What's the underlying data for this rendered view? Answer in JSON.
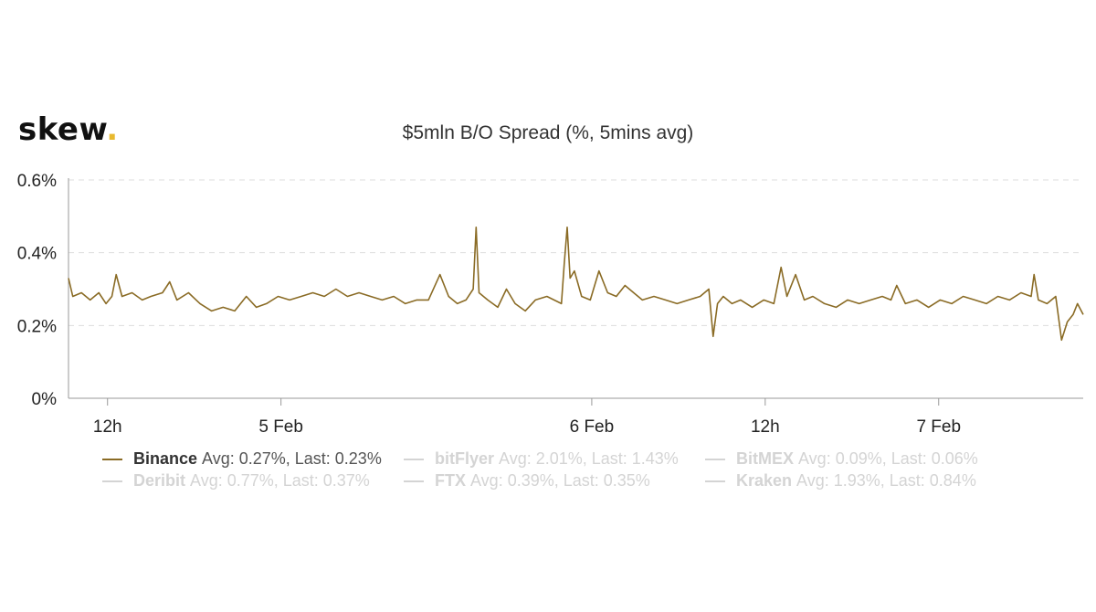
{
  "brand": {
    "name": "skew",
    "dot": "."
  },
  "chart_data": {
    "type": "line",
    "title": "$5mln B/O Spread (%, 5mins avg)",
    "xlabel": "",
    "ylabel": "",
    "ylim": [
      0,
      0.6
    ],
    "yticks": [
      0,
      0.2,
      0.4,
      0.6
    ],
    "ytick_labels": [
      "0%",
      "0.2%",
      "0.4%",
      "0.6%"
    ],
    "xticks": [
      {
        "label": "12h",
        "hour": 12
      },
      {
        "label": "5 Feb",
        "hour": 24
      },
      {
        "label": "6 Feb",
        "hour": 45.5
      },
      {
        "label": "12h",
        "hour": 57.5
      },
      {
        "label": "7 Feb",
        "hour": 69.5
      }
    ],
    "x_range_hours": [
      9.3,
      79.5
    ],
    "x_reference": "4 Feb 00:00",
    "grid": "horizontal dashed",
    "legend_position": "bottom",
    "series": [
      {
        "name": "Binance",
        "color": "#8a6b25",
        "visible": true,
        "avg_label": "Avg: 0.27%, Last: 0.23%",
        "points": [
          [
            9.3,
            0.33
          ],
          [
            9.6,
            0.28
          ],
          [
            10.2,
            0.29
          ],
          [
            10.8,
            0.27
          ],
          [
            11.4,
            0.29
          ],
          [
            11.9,
            0.26
          ],
          [
            12.3,
            0.28
          ],
          [
            12.6,
            0.34
          ],
          [
            13.0,
            0.28
          ],
          [
            13.7,
            0.29
          ],
          [
            14.4,
            0.27
          ],
          [
            15.0,
            0.28
          ],
          [
            15.8,
            0.29
          ],
          [
            16.3,
            0.32
          ],
          [
            16.8,
            0.27
          ],
          [
            17.6,
            0.29
          ],
          [
            18.4,
            0.26
          ],
          [
            19.2,
            0.24
          ],
          [
            20.0,
            0.25
          ],
          [
            20.8,
            0.24
          ],
          [
            21.6,
            0.28
          ],
          [
            22.3,
            0.25
          ],
          [
            23.0,
            0.26
          ],
          [
            23.8,
            0.28
          ],
          [
            24.6,
            0.27
          ],
          [
            25.4,
            0.28
          ],
          [
            26.2,
            0.29
          ],
          [
            27.0,
            0.28
          ],
          [
            27.8,
            0.3
          ],
          [
            28.6,
            0.28
          ],
          [
            29.4,
            0.29
          ],
          [
            30.2,
            0.28
          ],
          [
            31.0,
            0.27
          ],
          [
            31.8,
            0.28
          ],
          [
            32.6,
            0.26
          ],
          [
            33.4,
            0.27
          ],
          [
            34.2,
            0.27
          ],
          [
            35.0,
            0.34
          ],
          [
            35.6,
            0.28
          ],
          [
            36.2,
            0.26
          ],
          [
            36.8,
            0.27
          ],
          [
            37.3,
            0.3
          ],
          [
            37.5,
            0.47
          ],
          [
            37.7,
            0.29
          ],
          [
            38.3,
            0.27
          ],
          [
            39.0,
            0.25
          ],
          [
            39.6,
            0.3
          ],
          [
            40.2,
            0.26
          ],
          [
            40.9,
            0.24
          ],
          [
            41.6,
            0.27
          ],
          [
            42.4,
            0.28
          ],
          [
            43.4,
            0.26
          ],
          [
            43.6,
            0.37
          ],
          [
            43.8,
            0.47
          ],
          [
            44.0,
            0.33
          ],
          [
            44.3,
            0.35
          ],
          [
            44.8,
            0.28
          ],
          [
            45.4,
            0.27
          ],
          [
            46.0,
            0.35
          ],
          [
            46.6,
            0.29
          ],
          [
            47.2,
            0.28
          ],
          [
            47.8,
            0.31
          ],
          [
            48.4,
            0.29
          ],
          [
            49.0,
            0.27
          ],
          [
            49.8,
            0.28
          ],
          [
            50.6,
            0.27
          ],
          [
            51.4,
            0.26
          ],
          [
            52.2,
            0.27
          ],
          [
            53.0,
            0.28
          ],
          [
            53.6,
            0.3
          ],
          [
            53.9,
            0.17
          ],
          [
            54.2,
            0.26
          ],
          [
            54.6,
            0.28
          ],
          [
            55.2,
            0.26
          ],
          [
            55.8,
            0.27
          ],
          [
            56.6,
            0.25
          ],
          [
            57.4,
            0.27
          ],
          [
            58.1,
            0.26
          ],
          [
            58.6,
            0.36
          ],
          [
            59.0,
            0.28
          ],
          [
            59.6,
            0.34
          ],
          [
            60.2,
            0.27
          ],
          [
            60.8,
            0.28
          ],
          [
            61.6,
            0.26
          ],
          [
            62.4,
            0.25
          ],
          [
            63.2,
            0.27
          ],
          [
            64.0,
            0.26
          ],
          [
            64.8,
            0.27
          ],
          [
            65.6,
            0.28
          ],
          [
            66.2,
            0.27
          ],
          [
            66.6,
            0.31
          ],
          [
            67.2,
            0.26
          ],
          [
            68.0,
            0.27
          ],
          [
            68.8,
            0.25
          ],
          [
            69.6,
            0.27
          ],
          [
            70.4,
            0.26
          ],
          [
            71.2,
            0.28
          ],
          [
            72.0,
            0.27
          ],
          [
            72.8,
            0.26
          ],
          [
            73.6,
            0.28
          ],
          [
            74.4,
            0.27
          ],
          [
            75.2,
            0.29
          ],
          [
            75.9,
            0.28
          ],
          [
            76.1,
            0.34
          ],
          [
            76.4,
            0.27
          ],
          [
            77.0,
            0.26
          ],
          [
            77.6,
            0.28
          ],
          [
            77.9,
            0.19
          ],
          [
            78.0,
            0.16
          ],
          [
            78.4,
            0.21
          ],
          [
            78.8,
            0.23
          ],
          [
            79.1,
            0.26
          ],
          [
            79.5,
            0.23
          ]
        ]
      },
      {
        "name": "bitFlyer",
        "color": "#d4d4d4",
        "visible": false,
        "avg_label": "Avg: 2.01%, Last: 1.43%"
      },
      {
        "name": "BitMEX",
        "color": "#d4d4d4",
        "visible": false,
        "avg_label": "Avg: 0.09%, Last: 0.06%"
      },
      {
        "name": "Deribit",
        "color": "#d4d4d4",
        "visible": false,
        "avg_label": "Avg: 0.77%, Last: 0.37%"
      },
      {
        "name": "FTX",
        "color": "#d4d4d4",
        "visible": false,
        "avg_label": "Avg: 0.39%, Last: 0.35%"
      },
      {
        "name": "Kraken",
        "color": "#d4d4d4",
        "visible": false,
        "avg_label": "Avg: 1.93%, Last: 0.84%"
      }
    ]
  }
}
